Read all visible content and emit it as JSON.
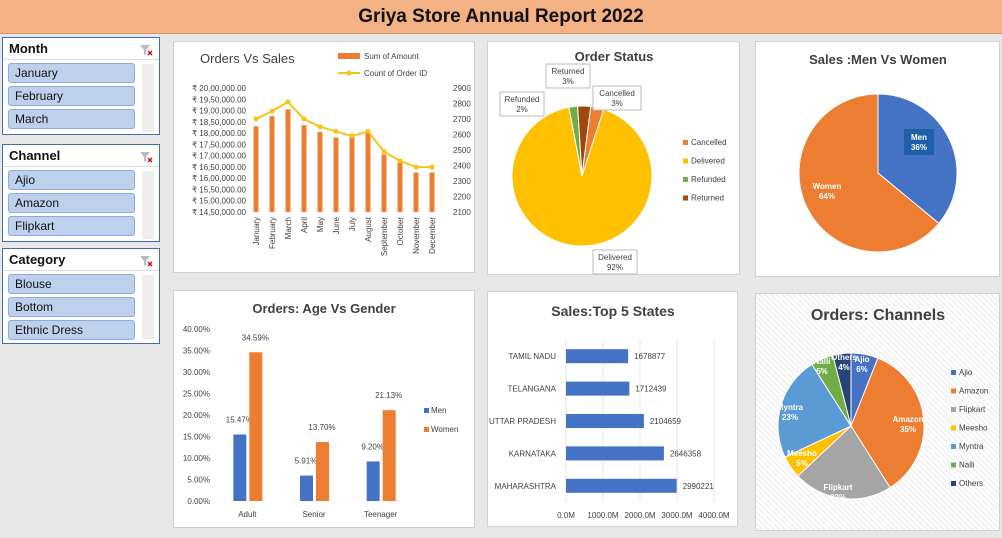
{
  "header": {
    "title": "Griya Store Annual Report 2022"
  },
  "slicers": [
    {
      "key": "month",
      "label": "Month",
      "items": [
        "January",
        "February",
        "March"
      ]
    },
    {
      "key": "channel",
      "label": "Channel",
      "items": [
        "Ajio",
        "Amazon",
        "Flipkart"
      ]
    },
    {
      "key": "category",
      "label": "Category",
      "items": [
        "Blouse",
        "Bottom",
        "Ethnic Dress"
      ]
    }
  ],
  "colors": {
    "orange": "#ed7d31",
    "blue": "#4472c4",
    "gold": "#ffc000",
    "green": "#70ad47",
    "brown": "#9e480e",
    "gray": "#a5a5a5",
    "lightblue": "#5b9bd5",
    "navy": "#264478",
    "line": "#f5c518"
  },
  "chart_data": [
    {
      "id": "orders-vs-sales",
      "type": "bar",
      "title": "Orders Vs Sales",
      "categories": [
        "January",
        "February",
        "March",
        "April",
        "May",
        "June",
        "July",
        "August",
        "September",
        "October",
        "November",
        "December"
      ],
      "series": [
        {
          "name": "Sum of Amount",
          "type": "bar",
          "axis": "left",
          "values": [
            18300000,
            18750000,
            19050000,
            18350000,
            18050000,
            17800000,
            17950000,
            18050000,
            17050000,
            16700000,
            16250000,
            16250000
          ]
        },
        {
          "name": "Count of Order ID",
          "type": "line",
          "axis": "right",
          "values": [
            2700,
            2750,
            2810,
            2700,
            2650,
            2620,
            2590,
            2620,
            2490,
            2430,
            2390,
            2390
          ]
        }
      ],
      "yticks_left": [
        "₹ 20,00,000.00",
        "₹ 19,50,000.00",
        "₹ 19,00,000.00",
        "₹ 18,50,000.00",
        "₹ 18,00,000.00",
        "₹ 17,50,000.00",
        "₹ 17,00,000.00",
        "₹ 16,50,000.00",
        "₹ 16,00,000.00",
        "₹ 15,50,000.00",
        "₹ 15,00,000.00",
        "₹ 14,50,000.00"
      ],
      "ylim_left": [
        14500000,
        20000000
      ],
      "yticks_right": [
        "2900",
        "2800",
        "2700",
        "2600",
        "2500",
        "2400",
        "2300",
        "2200",
        "2100"
      ],
      "ylim_right": [
        2100,
        2900
      ],
      "legend": "top"
    },
    {
      "id": "order-status",
      "type": "pie",
      "title": "Order Status",
      "labels": [
        "Cancelled",
        "Delivered",
        "Refunded",
        "Returned"
      ],
      "values": [
        3,
        92,
        2,
        3
      ],
      "data_labels": [
        "Cancelled\n3%",
        "Delivered\n92%",
        "Refunded\n2%",
        "Returned\n3%"
      ],
      "legend": "right"
    },
    {
      "id": "men-vs-women",
      "type": "pie",
      "title": "Sales :Men Vs Women",
      "labels": [
        "Men",
        "Women"
      ],
      "values": [
        36,
        64
      ],
      "data_labels": [
        "Men\n36%",
        "Women\n64%"
      ]
    },
    {
      "id": "age-vs-gender",
      "type": "bar",
      "title": "Orders: Age Vs Gender",
      "categories": [
        "Adult",
        "Senior",
        "Teenager"
      ],
      "series": [
        {
          "name": "Men",
          "values": [
            15.47,
            5.91,
            9.2
          ],
          "labels": [
            "15.47%",
            "5.91%",
            "9.20%"
          ]
        },
        {
          "name": "Women",
          "values": [
            34.59,
            13.7,
            21.13
          ],
          "labels": [
            "34.59%",
            "13.70%",
            "21.13%"
          ]
        }
      ],
      "yticks": [
        "40.00%",
        "35.00%",
        "30.00%",
        "25.00%",
        "20.00%",
        "15.00%",
        "10.00%",
        "5.00%",
        "0.00%"
      ],
      "ylim": [
        0,
        40
      ],
      "legend": "right"
    },
    {
      "id": "top5-states",
      "type": "bar",
      "orientation": "horizontal",
      "title": "Sales:Top 5 States",
      "categories": [
        "TAMIL NADU",
        "TELANGANA",
        "UTTAR PRADESH",
        "KARNATAKA",
        "MAHARASHTRA"
      ],
      "values": [
        1678877,
        1712439,
        2104659,
        2646358,
        2990221
      ],
      "data_labels": [
        "1678877",
        "1712439",
        "2104659",
        "2646358",
        "2990221"
      ],
      "xticks": [
        "0.0M",
        "1000.0M",
        "2000.0M",
        "3000.0M",
        "4000.0M"
      ],
      "xlim": [
        0,
        4000000
      ]
    },
    {
      "id": "orders-channels",
      "type": "pie",
      "title": "Orders: Channels",
      "labels": [
        "Ajio",
        "Amazon",
        "Flipkart",
        "Meesho",
        "Myntra",
        "Nalli",
        "Others"
      ],
      "values": [
        6,
        35,
        22,
        5,
        23,
        5,
        4
      ],
      "data_labels": [
        "Ajio\n6%",
        "Amazon\n35%",
        "Flipkart\n22%",
        "Meesho\n5%",
        "Myntra\n23%",
        "Nalli\n5%",
        "Others\n4%"
      ],
      "legend": "right"
    }
  ]
}
